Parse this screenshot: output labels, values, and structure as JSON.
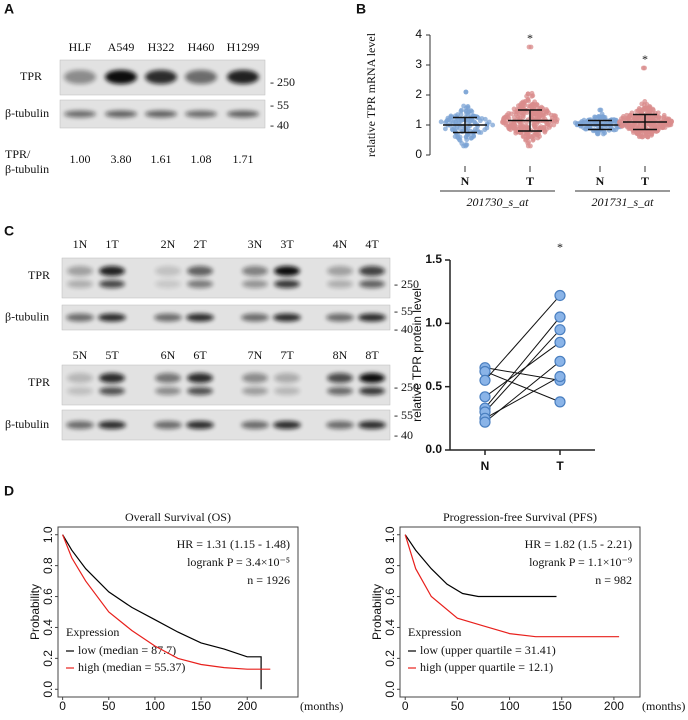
{
  "panel_labels": {
    "a": "A",
    "b": "B",
    "c": "C",
    "d": "D"
  },
  "blot_a": {
    "lanes": [
      "HLF",
      "A549",
      "H322",
      "H460",
      "H1299"
    ],
    "rows": [
      "TPR",
      "β-tubulin"
    ],
    "markers": [
      "- 250",
      "- 55",
      "- 40"
    ],
    "ratio_label": [
      "TPR/",
      "β-tubulin"
    ],
    "ratios": [
      "1.00",
      "3.80",
      "1.61",
      "1.08",
      "1.71"
    ]
  },
  "blot_c": {
    "lanes": [
      [
        "1N",
        "1T",
        "2N",
        "2T",
        "3N",
        "3T",
        "4N",
        "4T"
      ],
      [
        "5N",
        "5T",
        "6N",
        "6T",
        "7N",
        "7T",
        "8N",
        "8T"
      ]
    ],
    "rows": [
      "TPR",
      "β-tubulin"
    ],
    "markers": [
      "- 250",
      "- 55",
      "- 40"
    ]
  },
  "chart_data": [
    {
      "type": "dot",
      "ylabel": "relative TPR mRNA level",
      "ylim": [
        0,
        4
      ],
      "yticks": [
        0,
        1,
        2,
        3,
        4
      ],
      "groups": [
        {
          "name": "201730_s_at",
          "categories": [
            "N",
            "T"
          ],
          "colors": [
            "#7ba3d4",
            "#d98c8c"
          ],
          "mean": [
            1.0,
            1.15
          ],
          "sd": [
            0.25,
            0.35
          ],
          "range": [
            [
              0.3,
              2.1
            ],
            [
              0.3,
              3.6
            ]
          ],
          "marks": [
            null,
            "*"
          ]
        },
        {
          "name": "201731_s_at",
          "categories": [
            "N",
            "T"
          ],
          "colors": [
            "#7ba3d4",
            "#d98c8c"
          ],
          "mean": [
            1.0,
            1.1
          ],
          "sd": [
            0.15,
            0.25
          ],
          "range": [
            [
              0.7,
              1.5
            ],
            [
              0.6,
              2.9
            ]
          ],
          "marks": [
            null,
            "*"
          ]
        }
      ]
    },
    {
      "type": "paired",
      "ylabel": "relative TPR protein level",
      "ylim": [
        0,
        1.5
      ],
      "yticks": [
        {
          "value": 0,
          "label": "0.0"
        },
        {
          "value": 0.5,
          "label": "0.5"
        },
        {
          "value": 1,
          "label": "1.0"
        },
        {
          "value": 1.5,
          "label": "1.5"
        }
      ],
      "categories": [
        "N",
        "T"
      ],
      "color": "#8ab4e8",
      "annotation": "*",
      "series": [
        {
          "values": [
            0.65,
            0.55
          ]
        },
        {
          "values": [
            0.62,
            0.38
          ]
        },
        {
          "values": [
            0.55,
            1.22
          ]
        },
        {
          "values": [
            0.42,
            0.85
          ]
        },
        {
          "values": [
            0.33,
            1.05
          ]
        },
        {
          "values": [
            0.3,
            0.95
          ]
        },
        {
          "values": [
            0.25,
            0.58
          ]
        },
        {
          "values": [
            0.22,
            0.7
          ]
        }
      ]
    },
    {
      "type": "km",
      "title": "Overall Survival (OS)",
      "ylabel": "Probability",
      "xlabel": "(months)",
      "xlim": [
        -5,
        255
      ],
      "ylim": [
        -0.05,
        1.05
      ],
      "xticks": [
        0,
        50,
        100,
        150,
        200
      ],
      "yticks": [
        {
          "value": 0,
          "label": "0.0"
        },
        {
          "value": 0.2,
          "label": "0.2"
        },
        {
          "value": 0.4,
          "label": "0.4"
        },
        {
          "value": 0.6,
          "label": "0.6"
        },
        {
          "value": 0.8,
          "label": "0.8"
        },
        {
          "value": 1,
          "label": "1.0"
        }
      ],
      "stats": [
        "HR = 1.31 (1.15 - 1.48)",
        "logrank P = 3.4×10⁻⁵",
        "n = 1926"
      ],
      "legend_title": "Expression",
      "series": [
        {
          "name": "low (median = 87.7)",
          "color": "#000000",
          "x": [
            0,
            10,
            25,
            50,
            75,
            100,
            125,
            150,
            175,
            200,
            215,
            215
          ],
          "values": [
            1,
            0.9,
            0.78,
            0.63,
            0.53,
            0.45,
            0.37,
            0.3,
            0.26,
            0.21,
            0.21,
            0.0
          ]
        },
        {
          "name": "high (median = 55.37)",
          "color": "#e8201c",
          "x": [
            0,
            10,
            25,
            50,
            75,
            100,
            125,
            150,
            175,
            200,
            225
          ],
          "values": [
            1,
            0.85,
            0.7,
            0.5,
            0.38,
            0.28,
            0.2,
            0.16,
            0.14,
            0.13,
            0.13
          ]
        }
      ]
    },
    {
      "type": "km",
      "title": "Progression-free Survival (PFS)",
      "ylabel": "Probability",
      "xlabel": "(months)",
      "xlim": [
        -5,
        225
      ],
      "ylim": [
        -0.05,
        1.05
      ],
      "xticks": [
        0,
        50,
        100,
        150,
        200
      ],
      "yticks": [
        {
          "value": 0,
          "label": "0.0"
        },
        {
          "value": 0.2,
          "label": "0.2"
        },
        {
          "value": 0.4,
          "label": "0.4"
        },
        {
          "value": 0.6,
          "label": "0.6"
        },
        {
          "value": 0.8,
          "label": "0.8"
        },
        {
          "value": 1,
          "label": "1.0"
        }
      ],
      "stats": [
        "HR = 1.82 (1.5 - 2.21)",
        "logrank P = 1.1×10⁻⁹",
        "n = 982"
      ],
      "legend_title": "Expression",
      "series": [
        {
          "name": "low (upper quartile = 31.41)",
          "color": "#000000",
          "x": [
            0,
            10,
            25,
            40,
            55,
            70,
            100,
            145
          ],
          "values": [
            1,
            0.9,
            0.78,
            0.68,
            0.62,
            0.6,
            0.6,
            0.6
          ]
        },
        {
          "name": "high (upper quartile = 12.1)",
          "color": "#e8201c",
          "x": [
            0,
            10,
            25,
            50,
            75,
            100,
            125,
            150,
            205
          ],
          "values": [
            1,
            0.78,
            0.6,
            0.46,
            0.41,
            0.36,
            0.34,
            0.34,
            0.34
          ]
        }
      ]
    }
  ]
}
